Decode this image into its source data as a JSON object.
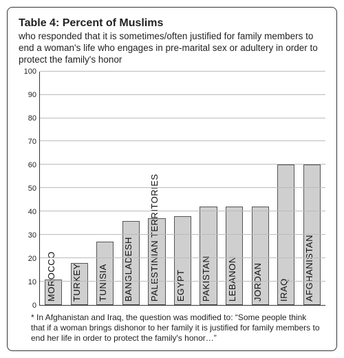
{
  "header": {
    "title": "Table 4:  Percent of Muslims",
    "subtitle": "who responded that it is sometimes/often justified for family members to end a woman's life who engages in pre-marital sex or adultery in order to protect the family's honor"
  },
  "chart": {
    "type": "bar",
    "ylim": [
      0,
      100
    ],
    "ytick_step": 10,
    "yticks": [
      0,
      10,
      20,
      30,
      40,
      50,
      60,
      70,
      80,
      90,
      100
    ],
    "grid_color": "#bbbbbb",
    "axis_color": "#333333",
    "bar_fill": "#cfcfcf",
    "bar_border": "#555555",
    "background_color": "#ffffff",
    "label_fontsize": 13,
    "tick_fontsize": 11,
    "bars": [
      {
        "label": "MOROCCO",
        "value": 11
      },
      {
        "label": "TURKEY",
        "value": 18
      },
      {
        "label": "TUNISIA",
        "value": 27
      },
      {
        "label": "BANGLADESH",
        "value": 36
      },
      {
        "label": "PALESTINIAN TERRITORIES",
        "value": 37
      },
      {
        "label": "EGYPT",
        "value": 38
      },
      {
        "label": "PAKISTAN",
        "value": 42
      },
      {
        "label": "LEBANON",
        "value": 42
      },
      {
        "label": "JORDAN",
        "value": 42
      },
      {
        "label": "IRAQ",
        "value": 60
      },
      {
        "label": "AFGHANISTAN",
        "value": 60
      }
    ]
  },
  "footnote": "* In Afghanistan and Iraq, the question was modified to: “Some people think that if a woman brings dishonor to her family it is justified for family members to end her life in order to protect the family's honor…”"
}
